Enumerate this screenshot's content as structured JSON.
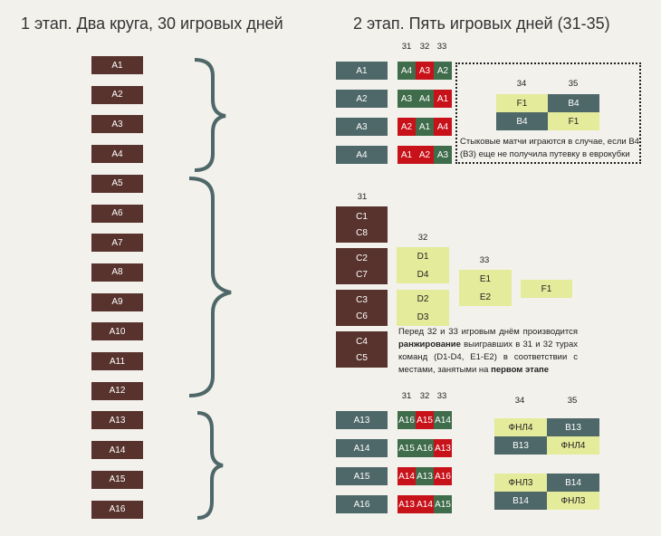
{
  "titles": {
    "stage1": "1 этап. Два круга, 30 игровых дней",
    "stage2": "2 этап. Пять игровых дней (31-35)"
  },
  "colors": {
    "brown": "#58332d",
    "slate": "#4e6768",
    "green": "#3f6c4a",
    "red": "#c8121a",
    "yellow": "#e4eb9a"
  },
  "stage1_teams": [
    "A1",
    "A2",
    "A3",
    "A4",
    "A5",
    "A6",
    "A7",
    "A8",
    "A9",
    "A10",
    "A11",
    "A12",
    "A13",
    "A14",
    "A15",
    "A16"
  ],
  "top": {
    "rounds": [
      "31",
      "32",
      "33"
    ],
    "rows": [
      {
        "team": "A1",
        "cells": [
          {
            "t": "A4",
            "c": "green"
          },
          {
            "t": "A3",
            "c": "red"
          },
          {
            "t": "A2",
            "c": "green"
          }
        ]
      },
      {
        "team": "A2",
        "cells": [
          {
            "t": "A3",
            "c": "green"
          },
          {
            "t": "A4",
            "c": "green"
          },
          {
            "t": "A1",
            "c": "red"
          }
        ]
      },
      {
        "team": "A3",
        "cells": [
          {
            "t": "A2",
            "c": "red"
          },
          {
            "t": "A1",
            "c": "green"
          },
          {
            "t": "A4",
            "c": "red"
          }
        ]
      },
      {
        "team": "A4",
        "cells": [
          {
            "t": "A1",
            "c": "red"
          },
          {
            "t": "A2",
            "c": "red"
          },
          {
            "t": "A3",
            "c": "green"
          }
        ]
      }
    ],
    "playoff": {
      "rounds": [
        "34",
        "35"
      ],
      "rows": [
        [
          {
            "t": "F1",
            "c": "yellow"
          },
          {
            "t": "B4",
            "c": "slate"
          }
        ],
        [
          {
            "t": "B4",
            "c": "slate"
          },
          {
            "t": "F1",
            "c": "yellow"
          }
        ]
      ],
      "note_line1": "Стыковые матчи играются в случае, если B4",
      "note_line2": "(B3) еще не получила путевку в еврокубки"
    }
  },
  "middle": {
    "round31": "31",
    "round32": "32",
    "round33": "33",
    "pairs31": [
      [
        "C1",
        "C8"
      ],
      [
        "C2",
        "C7"
      ],
      [
        "C3",
        "C6"
      ],
      [
        "C4",
        "C5"
      ]
    ],
    "d": [
      [
        "D1",
        "D4"
      ],
      [
        "D2",
        "D3"
      ]
    ],
    "e": [
      "E1",
      "E2"
    ],
    "f": "F1",
    "note": {
      "p1": "Перед 32 и 33 игровым днём производится",
      "b1": "ранжирование",
      "p2": " выигравших в 31 и 32 турах команд (D1-D4, E1-E2) в соответствии с местами, занятыми на ",
      "b2": "первом этапе"
    }
  },
  "bottom": {
    "rounds": [
      "31",
      "32",
      "33"
    ],
    "rows": [
      {
        "team": "A13",
        "cells": [
          {
            "t": "A16",
            "c": "green"
          },
          {
            "t": "A15",
            "c": "red"
          },
          {
            "t": "A14",
            "c": "green"
          }
        ]
      },
      {
        "team": "A14",
        "cells": [
          {
            "t": "A15",
            "c": "green"
          },
          {
            "t": "A16",
            "c": "green"
          },
          {
            "t": "A13",
            "c": "red"
          }
        ]
      },
      {
        "team": "A15",
        "cells": [
          {
            "t": "A14",
            "c": "red"
          },
          {
            "t": "A13",
            "c": "green"
          },
          {
            "t": "A16",
            "c": "red"
          }
        ]
      },
      {
        "team": "A16",
        "cells": [
          {
            "t": "A13",
            "c": "red"
          },
          {
            "t": "A14",
            "c": "red"
          },
          {
            "t": "A15",
            "c": "green"
          }
        ]
      }
    ],
    "relegation": {
      "rounds": [
        "34",
        "35"
      ],
      "groups": [
        [
          [
            {
              "t": "ФНЛ4",
              "c": "yellow"
            },
            {
              "t": "B13",
              "c": "slate"
            }
          ],
          [
            {
              "t": "B13",
              "c": "slate"
            },
            {
              "t": "ФНЛ4",
              "c": "yellow"
            }
          ]
        ],
        [
          [
            {
              "t": "ФНЛ3",
              "c": "yellow"
            },
            {
              "t": "B14",
              "c": "slate"
            }
          ],
          [
            {
              "t": "B14",
              "c": "slate"
            },
            {
              "t": "ФНЛ3",
              "c": "yellow"
            }
          ]
        ]
      ]
    }
  }
}
